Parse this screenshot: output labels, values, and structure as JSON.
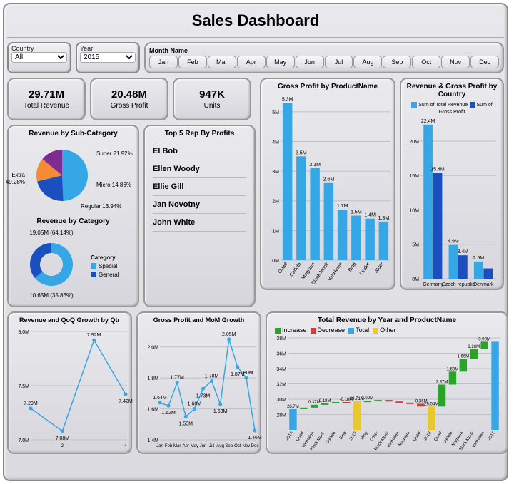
{
  "title": "Sales Dashboard",
  "filters": {
    "country_label": "Country",
    "country_value": "All",
    "year_label": "Year",
    "year_value": "2015",
    "month_label": "Month Name",
    "months": [
      "Jan",
      "Feb",
      "Mar",
      "Apr",
      "May",
      "Jun",
      "Jul",
      "Aug",
      "Sep",
      "Oct",
      "Nov",
      "Dec"
    ]
  },
  "kpi": {
    "revenue": {
      "value": "29.71M",
      "label": "Total Revenue"
    },
    "profit": {
      "value": "20.48M",
      "label": "Gross Profit"
    },
    "units": {
      "value": "947K",
      "label": "Units"
    }
  },
  "pie_subcat": {
    "title": "Revenue by Sub-Category",
    "type": "pie",
    "slices": [
      {
        "label": "Extra",
        "pct": 49.28,
        "color": "#35a6e6"
      },
      {
        "label": "Super",
        "pct": 21.92,
        "color": "#1b4fbf"
      },
      {
        "label": "Micro",
        "pct": 14.86,
        "color": "#f58b35"
      },
      {
        "label": "Regular",
        "pct": 13.94,
        "color": "#7d2d91"
      }
    ],
    "label_extra": "Extra 49.28%",
    "label_super": "Super 21.92%",
    "label_micro": "Micro 14.86%",
    "label_regular": "Regular 13.94%",
    "background_color": "#e4e4ea",
    "label_fontsize": 8
  },
  "donut_cat": {
    "title": "Revenue by Category",
    "type": "donut",
    "slices": [
      {
        "label": "Special",
        "value": "19.05M",
        "pct": 64.14,
        "color": "#35a6e6"
      },
      {
        "label": "General",
        "value": "10.65M",
        "pct": 35.86,
        "color": "#1b4fbf"
      }
    ],
    "top_text": "19.05M (64.14%)",
    "bottom_text": "10.65M (35.86%)",
    "legend_title": "Category",
    "legend": [
      "Special",
      "General"
    ]
  },
  "top5": {
    "title": "Top 5 Rep By Profits",
    "items": [
      "El Bob",
      "Ellen Woody",
      "Ellie Gill",
      "Jan Novotny",
      "John White"
    ],
    "fontsize": 11
  },
  "bar_product": {
    "title": "Gross Profit by ProductName",
    "type": "bar",
    "categories": [
      "Quad",
      "Carlota",
      "Magnum",
      "Black Monk",
      "VanHalen",
      "Bing",
      "Linder",
      "Alder"
    ],
    "values": [
      5.3,
      3.5,
      3.1,
      2.6,
      1.7,
      1.5,
      1.4,
      1.3
    ],
    "labels": [
      "5.3M",
      "3.5M",
      "3.1M",
      "2.6M",
      "1.7M",
      "1.5M",
      "1.4M",
      "1.3M"
    ],
    "bar_color": "#35a6e6",
    "ylim": [
      0,
      5.5
    ],
    "yticks": [
      0,
      1,
      2,
      3,
      4,
      5
    ],
    "ytick_labels": [
      "0M",
      "1M",
      "2M",
      "3M",
      "4M",
      "5M"
    ],
    "grid_color": "#c0c0c6",
    "label_fontsize": 8,
    "bar_width": 0.7
  },
  "bar_country": {
    "title": "Revenue & Gross Profit by Country",
    "type": "grouped-bar",
    "legend": [
      {
        "label": "Sum of Total Revenue",
        "color": "#35a6e6"
      },
      {
        "label": "Sum of Gross Profit",
        "color": "#1b4fbf"
      }
    ],
    "categories": [
      "Germany",
      "Czech republic",
      "Denmark"
    ],
    "revenue": [
      22.4,
      4.9,
      2.5
    ],
    "revenue_labels": [
      "22.4M",
      "4.9M",
      "2.5M"
    ],
    "profit": [
      15.4,
      3.4,
      1.5
    ],
    "profit_labels": [
      "15.4M",
      "3.4M",
      ""
    ],
    "ylim": [
      0,
      23
    ],
    "yticks": [
      0,
      5,
      10,
      15,
      20
    ],
    "ytick_labels": [
      "0M",
      "5M",
      "10M",
      "15M",
      "20M"
    ],
    "grid_color": "#c0c0c6",
    "label_fontsize": 8
  },
  "line_qoq": {
    "title": "Revenue and QoQ Growth by Qtr",
    "type": "line",
    "x": [
      1,
      2,
      3,
      4
    ],
    "y": [
      7.29,
      7.08,
      7.92,
      7.42
    ],
    "labels": [
      "7.29M",
      "7.08M",
      "7.92M",
      "7.42M"
    ],
    "x_tick_labels": [
      "",
      "2",
      "",
      "4"
    ],
    "line_color": "#35a6e6",
    "marker": "circle",
    "ylim": [
      7.0,
      8.0
    ],
    "yticks": [
      7.0,
      7.5,
      8.0
    ],
    "ytick_labels": [
      "7.0M",
      "7.5M",
      "8.0M"
    ],
    "grid_color": "#c0c0c6",
    "label_fontsize": 8
  },
  "line_mom": {
    "title": "Gross Profit and MoM Growth",
    "type": "line",
    "x_labels": [
      "Jan",
      "Feb",
      "Mar",
      "Apr",
      "May",
      "Jun",
      "Jul",
      "Aug",
      "Sep",
      "Oct",
      "Nov",
      "Dec"
    ],
    "y": [
      1.64,
      1.62,
      1.77,
      1.55,
      1.6,
      1.73,
      1.78,
      1.63,
      2.05,
      1.87,
      1.8,
      1.46
    ],
    "labels": [
      "1.64M",
      "1.62M",
      "1.77M",
      "1.55M",
      "1.60M",
      "1.73M",
      "1.78M",
      "1.63M",
      "2.05M",
      "1.87M",
      "1.80M",
      "1.46M"
    ],
    "line_color": "#35a6e6",
    "ylim": [
      1.4,
      2.1
    ],
    "yticks": [
      1.4,
      1.6,
      1.8,
      2.0
    ],
    "ytick_labels": [
      "1.4M",
      "1.6M",
      "1.8M",
      "2.0M"
    ],
    "grid_color": "#c0c0c6",
    "label_fontsize": 8
  },
  "waterfall": {
    "title": "Total Revenue by Year and ProductName",
    "type": "waterfall",
    "legend": [
      {
        "label": "Increase",
        "color": "#28a428"
      },
      {
        "label": "Decrease",
        "color": "#d83a3a"
      },
      {
        "label": "Total",
        "color": "#35a6e6"
      },
      {
        "label": "Other",
        "color": "#e8c82d"
      }
    ],
    "ylim": [
      26,
      38
    ],
    "yticks": [
      28,
      30,
      32,
      34,
      36,
      38
    ],
    "ytick_labels": [
      "28M",
      "30M",
      "32M",
      "34M",
      "36M",
      "38M"
    ],
    "items": [
      {
        "label": "2014",
        "type": "total",
        "value": 28.7,
        "text": "28.7M"
      },
      {
        "label": "Quad",
        "type": "inc",
        "from": 28.7,
        "to": 28.9,
        "text": ""
      },
      {
        "label": "VanHalen",
        "type": "inc",
        "from": 28.9,
        "to": 29.27,
        "text": "0.37M"
      },
      {
        "label": "Black Monk",
        "type": "inc",
        "from": 29.27,
        "to": 29.45,
        "text": "0.18M"
      },
      {
        "label": "Carlota",
        "type": "inc",
        "from": 29.45,
        "to": 29.63,
        "text": ""
      },
      {
        "label": "Bing",
        "type": "dec",
        "from": 29.63,
        "to": 29.45,
        "text": "-0.18M"
      },
      {
        "label": "2015",
        "type": "other",
        "value": 29.71,
        "text": "29.71M"
      },
      {
        "label": "Bing",
        "type": "inc",
        "from": 29.71,
        "to": 29.8,
        "text": "0.09M"
      },
      {
        "label": "Other",
        "type": "inc",
        "from": 29.8,
        "to": 29.9,
        "text": ""
      },
      {
        "label": "Black Monk",
        "type": "dec",
        "from": 29.9,
        "to": 29.7,
        "text": ""
      },
      {
        "label": "VanHalen",
        "type": "dec",
        "from": 29.7,
        "to": 29.55,
        "text": ""
      },
      {
        "label": "Magnum",
        "type": "dec",
        "from": 29.55,
        "to": 29.4,
        "text": ""
      },
      {
        "label": "Quad",
        "type": "dec",
        "from": 29.4,
        "to": 29.04,
        "text": "-0.36M"
      },
      {
        "label": "2016",
        "type": "other",
        "value": 29.04,
        "text": "29.04M"
      },
      {
        "label": "Quad",
        "type": "inc",
        "from": 29.04,
        "to": 31.91,
        "text": "2.87M"
      },
      {
        "label": "Carlota",
        "type": "inc",
        "from": 31.91,
        "to": 33.6,
        "text": "1.69M"
      },
      {
        "label": "Magnum",
        "type": "inc",
        "from": 33.6,
        "to": 35.26,
        "text": "1.66M"
      },
      {
        "label": "Black Monk",
        "type": "inc",
        "from": 35.26,
        "to": 36.52,
        "text": "1.26M"
      },
      {
        "label": "VanHalen",
        "type": "inc",
        "from": 36.52,
        "to": 37.5,
        "text": "0.98M"
      },
      {
        "label": "2017",
        "type": "total",
        "value": 37.5,
        "text": ""
      }
    ],
    "grid_color": "#c0c0c6",
    "label_fontsize": 7
  },
  "colors": {
    "panel_bg": "#e4e4ea",
    "panel_border": "#999",
    "text": "#222"
  }
}
